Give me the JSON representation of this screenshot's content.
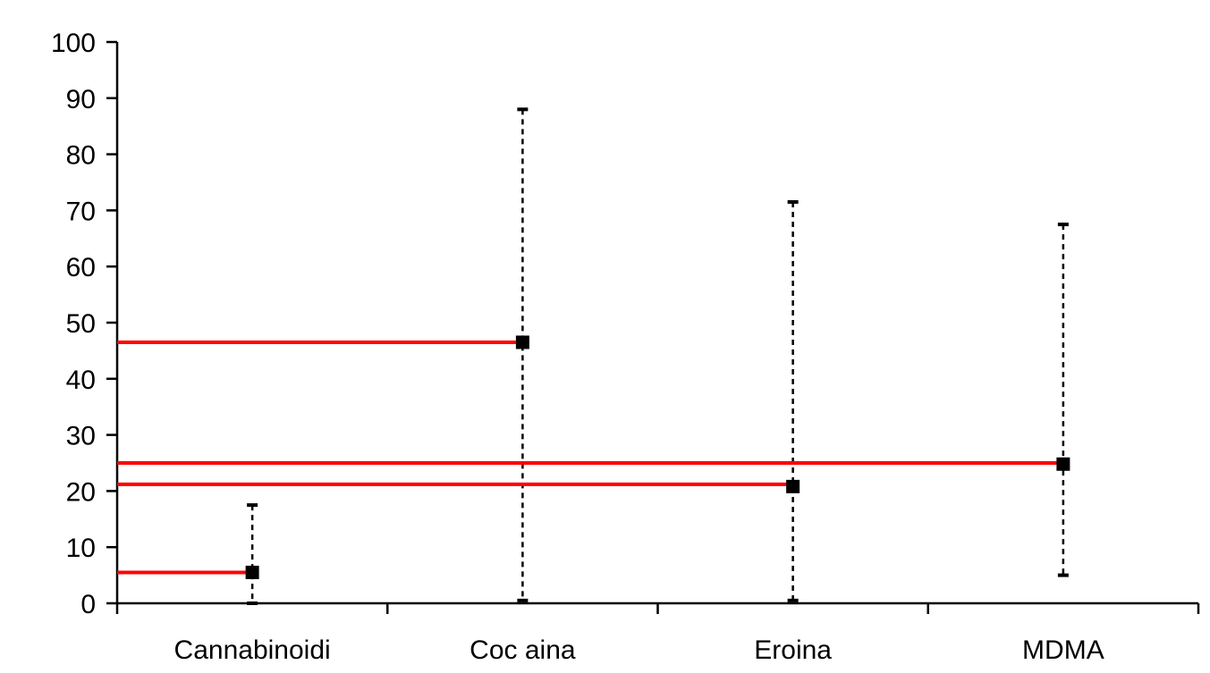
{
  "chart_data": {
    "type": "scatter",
    "title": "",
    "xlabel": "",
    "ylabel": "",
    "ylim": [
      0,
      100
    ],
    "yticks": [
      0,
      10,
      20,
      30,
      40,
      50,
      60,
      70,
      80,
      90,
      100
    ],
    "grid": false,
    "legend": "none",
    "categories": [
      "Cannabinoidi",
      "Coc aina",
      "Eroina",
      "MDMA"
    ],
    "series": [
      {
        "values": [
          5.5,
          46.5,
          20.8,
          24.8
        ],
        "lower": [
          0,
          0.5,
          0.5,
          5
        ],
        "upper": [
          17.5,
          88,
          71.5,
          67.5
        ],
        "marker": "square",
        "color": "#000000"
      }
    ],
    "reference_lines": [
      {
        "value": 5.5,
        "to_category": 0,
        "color": "#ff0000"
      },
      {
        "value": 46.5,
        "to_category": 1,
        "color": "#ff0000"
      },
      {
        "value": 21.2,
        "to_category": 2,
        "color": "#ff0000"
      },
      {
        "value": 25.0,
        "to_category": 3,
        "color": "#ff0000"
      }
    ]
  }
}
